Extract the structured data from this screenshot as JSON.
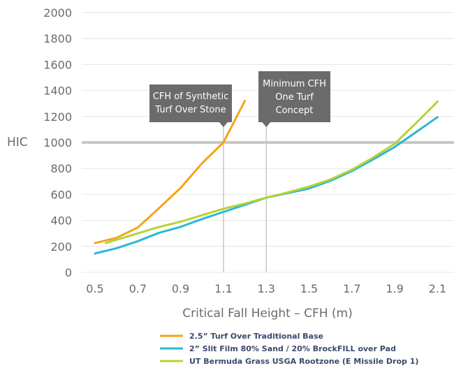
{
  "chart_data": {
    "type": "line",
    "title": "",
    "xlabel": "Critical Fall Height – CFH (m)",
    "ylabel": "HIC",
    "xlim": [
      0.45,
      2.15
    ],
    "ylim": [
      0,
      2000
    ],
    "xticks": [
      "0.5",
      "0.7",
      "0.9",
      "1.1",
      "1.3",
      "1.5",
      "1.7",
      "1.9",
      "2.1"
    ],
    "yticks": [
      "0",
      "200",
      "400",
      "600",
      "800",
      "1000",
      "1200",
      "1400",
      "1600",
      "1800",
      "2000"
    ],
    "grid": true,
    "legend_position": "bottom",
    "threshold": {
      "y": 1000,
      "color": "#c8c8c8"
    },
    "series": [
      {
        "name": "2.5” Turf Over Traditional Base",
        "color": "#f5a31a",
        "points": [
          [
            0.5,
            225
          ],
          [
            0.6,
            265
          ],
          [
            0.7,
            345
          ],
          [
            0.8,
            495
          ],
          [
            0.9,
            650
          ],
          [
            1.0,
            840
          ],
          [
            1.1,
            1000
          ],
          [
            1.2,
            1320
          ]
        ]
      },
      {
        "name": "2” Slit Film 80% Sand / 20% BrockFILL over Pad",
        "color": "#29b9d4",
        "points": [
          [
            0.5,
            145
          ],
          [
            0.6,
            185
          ],
          [
            0.7,
            240
          ],
          [
            0.8,
            305
          ],
          [
            0.9,
            350
          ],
          [
            1.0,
            410
          ],
          [
            1.1,
            465
          ],
          [
            1.2,
            520
          ],
          [
            1.3,
            575
          ],
          [
            1.4,
            610
          ],
          [
            1.5,
            645
          ],
          [
            1.6,
            705
          ],
          [
            1.7,
            780
          ],
          [
            1.8,
            870
          ],
          [
            1.9,
            965
          ],
          [
            2.0,
            1080
          ],
          [
            2.1,
            1195
          ]
        ]
      },
      {
        "name": "UT Bermuda Grass USGA Rootzone (E Missile Drop 1)",
        "color": "#b5d334",
        "points": [
          [
            0.55,
            225
          ],
          [
            0.6,
            250
          ],
          [
            0.7,
            300
          ],
          [
            0.8,
            350
          ],
          [
            0.9,
            390
          ],
          [
            1.0,
            440
          ],
          [
            1.1,
            490
          ],
          [
            1.2,
            530
          ],
          [
            1.3,
            575
          ],
          [
            1.4,
            615
          ],
          [
            1.5,
            660
          ],
          [
            1.6,
            715
          ],
          [
            1.7,
            790
          ],
          [
            1.8,
            885
          ],
          [
            1.9,
            990
          ],
          [
            2.0,
            1150
          ],
          [
            2.1,
            1315
          ]
        ]
      }
    ],
    "annotations": [
      {
        "id": "synthetic",
        "lines": [
          "CFH of Synthetic",
          "Turf Over Stone"
        ],
        "x": 1.1
      },
      {
        "id": "minimum",
        "lines": [
          "Minimum CFH",
          "One Turf",
          "Concept"
        ],
        "x": 1.3
      }
    ]
  },
  "colors": {
    "grid": "#e6e6e6",
    "tick_text": "#6b6b6b",
    "callout_bg": "#6b6b6b",
    "marker_line": "#c8c8c8",
    "legend_text": "#3a4a6b"
  }
}
